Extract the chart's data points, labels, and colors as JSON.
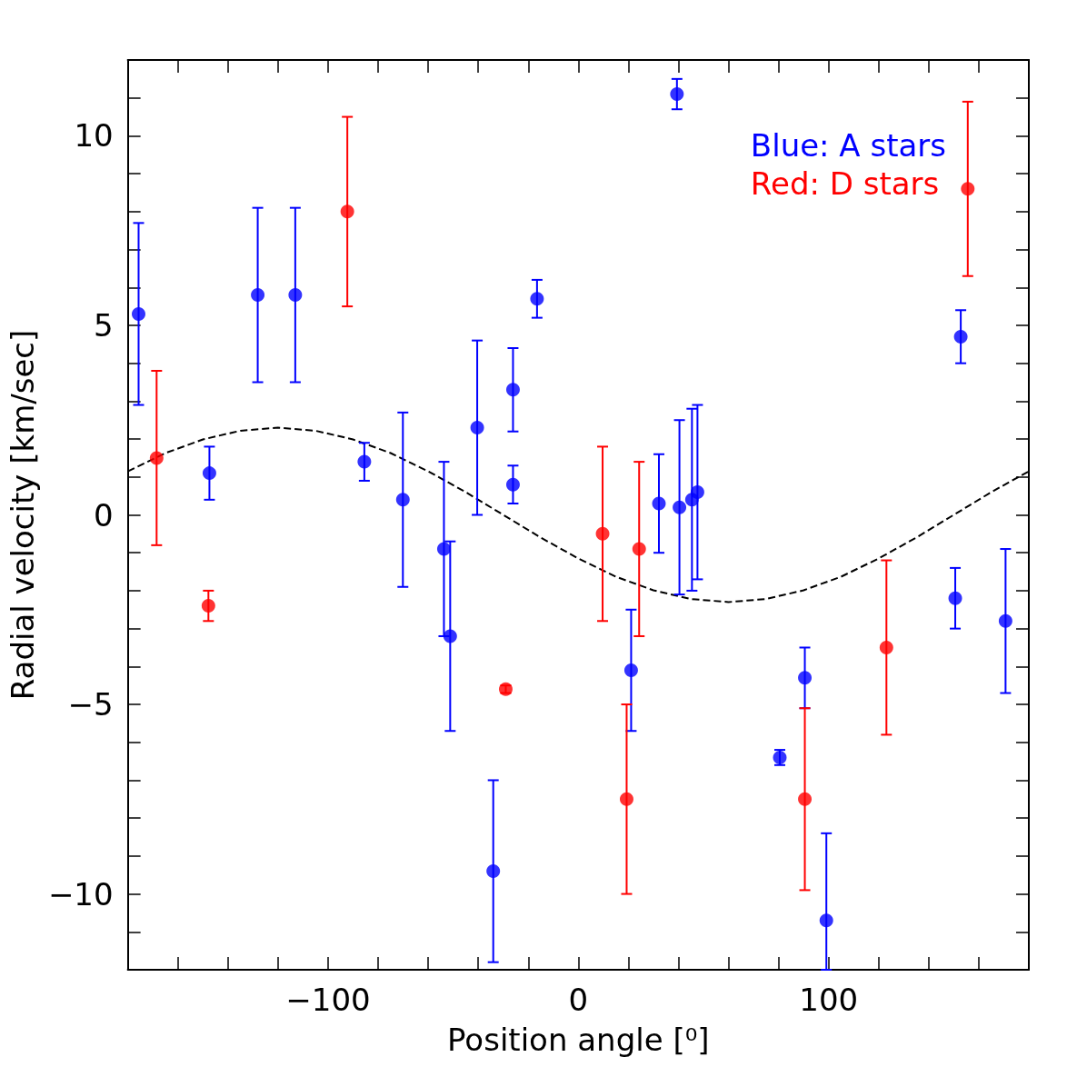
{
  "chart_data": {
    "type": "scatter",
    "xlabel": "Position angle [⁰]",
    "ylabel": "Radial velocity [km/sec]",
    "xlim": [
      -180,
      180
    ],
    "ylim": [
      -12,
      12
    ],
    "xticks": [
      {
        "value": -160,
        "label": null
      },
      {
        "value": -140,
        "label": null
      },
      {
        "value": -120,
        "label": null
      },
      -100,
      {
        "value": -80,
        "label": null
      },
      {
        "value": -60,
        "label": null
      },
      {
        "value": -40,
        "label": null
      },
      {
        "value": -20,
        "label": null
      },
      0,
      {
        "value": 20,
        "label": null
      },
      {
        "value": 40,
        "label": null
      },
      {
        "value": 60,
        "label": null
      },
      {
        "value": 80,
        "label": null
      },
      100,
      {
        "value": 120,
        "label": null
      },
      {
        "value": 140,
        "label": null
      },
      {
        "value": 160,
        "label": null
      }
    ],
    "yticks": [
      {
        "value": -11,
        "label": null
      },
      -10,
      {
        "value": -9,
        "label": null
      },
      {
        "value": -8,
        "label": null
      },
      {
        "value": -7,
        "label": null
      },
      {
        "value": -6,
        "label": null
      },
      -5,
      {
        "value": -4,
        "label": null
      },
      {
        "value": -3,
        "label": null
      },
      {
        "value": -2,
        "label": null
      },
      {
        "value": -1,
        "label": null
      },
      0,
      {
        "value": 1,
        "label": null
      },
      {
        "value": 2,
        "label": null
      },
      {
        "value": 3,
        "label": null
      },
      {
        "value": 4,
        "label": null
      },
      5,
      {
        "value": 6,
        "label": null
      },
      {
        "value": 7,
        "label": null
      },
      {
        "value": 8,
        "label": null
      },
      {
        "value": 9,
        "label": null
      },
      10,
      {
        "value": 11,
        "label": null
      }
    ],
    "grid": false,
    "legend": "top right",
    "series": [
      {
        "name": "Blue: A stars",
        "color": "#0000ff",
        "x": [
          -175.7,
          -147.4,
          -128.1,
          -113.1,
          -85.5,
          -70.1,
          -53.7,
          -51.2,
          -40.4,
          -34.0,
          -26.1,
          -26.1,
          -16.5,
          21.1,
          32.2,
          39.4,
          40.4,
          45.4,
          47.6,
          80.5,
          90.5,
          99.1,
          150.6,
          152.8,
          170.7
        ],
        "values": [
          5.3,
          1.1,
          5.8,
          5.8,
          1.4,
          0.4,
          -0.9,
          -3.2,
          2.3,
          -9.4,
          3.3,
          0.8,
          5.7,
          -4.1,
          0.3,
          11.1,
          0.2,
          0.4,
          0.6,
          -6.4,
          -4.3,
          -10.7,
          -2.2,
          4.7,
          -2.8
        ],
        "errors": [
          2.4,
          0.7,
          2.3,
          2.3,
          0.5,
          2.3,
          2.3,
          2.5,
          2.3,
          2.4,
          1.1,
          0.5,
          0.5,
          1.6,
          1.3,
          0.4,
          2.3,
          2.4,
          2.3,
          0.2,
          0.8,
          [
            -12,
            -8.4
          ],
          0.8,
          0.7,
          1.9
        ],
        "marker": "circle"
      },
      {
        "name": "Red: D stars",
        "color": "#ff0000",
        "x": [
          -168.5,
          -147.8,
          -92.3,
          -29.0,
          9.7,
          19.3,
          24.3,
          90.5,
          123.1,
          155.6
        ],
        "values": [
          1.5,
          -2.4,
          8.0,
          -4.6,
          -0.5,
          -7.5,
          -0.9,
          -7.5,
          -3.5,
          8.6
        ],
        "errors": [
          2.3,
          0.4,
          2.5,
          0.1,
          2.3,
          2.5,
          2.3,
          2.4,
          2.3,
          2.3
        ],
        "marker": "circle"
      },
      {
        "type": "line",
        "color": "#000000",
        "line_style": "dashed",
        "marker": "none",
        "x": [
          -180,
          -165,
          -150,
          -135,
          -120,
          -105,
          -90,
          -75,
          -60,
          -45,
          -30,
          -15,
          0,
          15,
          30,
          45,
          60,
          75,
          90,
          105,
          120,
          135,
          150,
          165,
          180
        ],
        "values": [
          1.15,
          1.63,
          1.99,
          2.22,
          2.3,
          2.22,
          1.99,
          1.63,
          1.15,
          0.6,
          0,
          -0.6,
          -1.15,
          -1.63,
          -1.99,
          -2.22,
          -2.3,
          -2.22,
          -1.99,
          -1.63,
          -1.15,
          -0.6,
          0,
          0.6,
          1.15
        ]
      }
    ]
  }
}
